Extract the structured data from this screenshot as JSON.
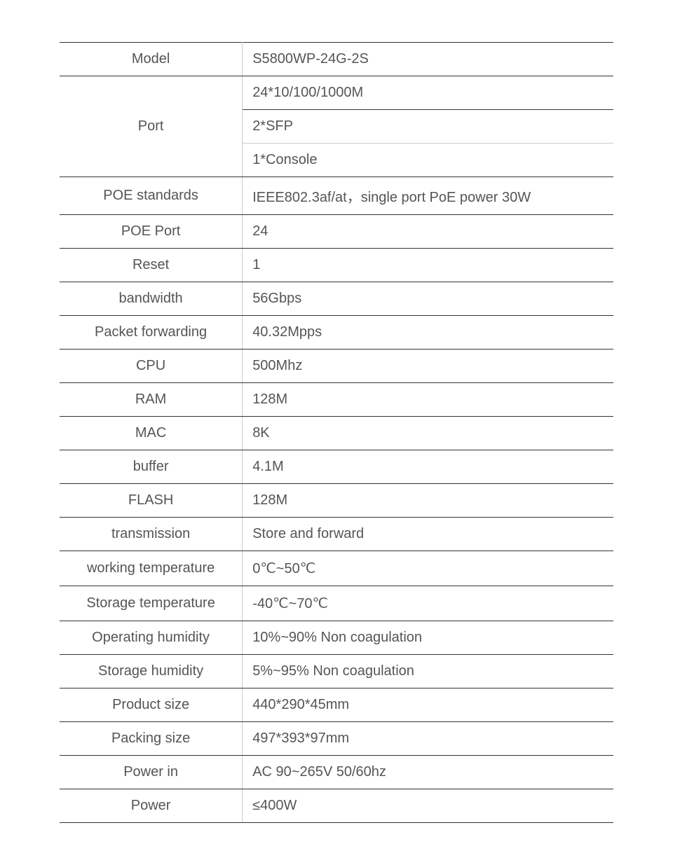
{
  "table": {
    "type": "spec_table",
    "border_color": "#333333",
    "inner_border_color": "#cccccc",
    "text_color": "#555555",
    "font_size": 20,
    "label_width_pct": 33,
    "value_width_pct": 67,
    "background_color": "#ffffff",
    "rows": [
      {
        "label": "Model",
        "values": [
          "S5800WP-24G-2S"
        ]
      },
      {
        "label": "Port",
        "values": [
          "24*10/100/1000M",
          "2*SFP",
          "1*Console"
        ]
      },
      {
        "label": "POE standards",
        "values": [
          "IEEE802.3af/at，single port PoE power 30W"
        ]
      },
      {
        "label": "POE Port",
        "values": [
          "24"
        ]
      },
      {
        "label": "Reset",
        "values": [
          "1"
        ]
      },
      {
        "label": "bandwidth",
        "values": [
          "56Gbps"
        ]
      },
      {
        "label": "Packet forwarding",
        "values": [
          "40.32Mpps"
        ]
      },
      {
        "label": "CPU",
        "values": [
          "500Mhz"
        ]
      },
      {
        "label": "RAM",
        "values": [
          "128M"
        ]
      },
      {
        "label": "MAC",
        "values": [
          "8K"
        ]
      },
      {
        "label": "buffer",
        "values": [
          "4.1M"
        ]
      },
      {
        "label": "FLASH",
        "values": [
          "128M"
        ]
      },
      {
        "label": "transmission",
        "values": [
          "Store and forward"
        ]
      },
      {
        "label": "working temperature",
        "values": [
          "0℃~50℃"
        ]
      },
      {
        "label": "Storage temperature",
        "values": [
          "-40℃~70℃"
        ]
      },
      {
        "label": "Operating humidity",
        "values": [
          "10%~90% Non coagulation"
        ]
      },
      {
        "label": "Storage humidity",
        "values": [
          "5%~95% Non coagulation"
        ]
      },
      {
        "label": "Product size",
        "values": [
          "440*290*45mm"
        ]
      },
      {
        "label": "Packing size",
        "values": [
          "497*393*97mm"
        ]
      },
      {
        "label": "Power in",
        "values": [
          "AC 90~265V 50/60hz"
        ]
      },
      {
        "label": "Power",
        "values": [
          "≤400W"
        ]
      }
    ]
  }
}
